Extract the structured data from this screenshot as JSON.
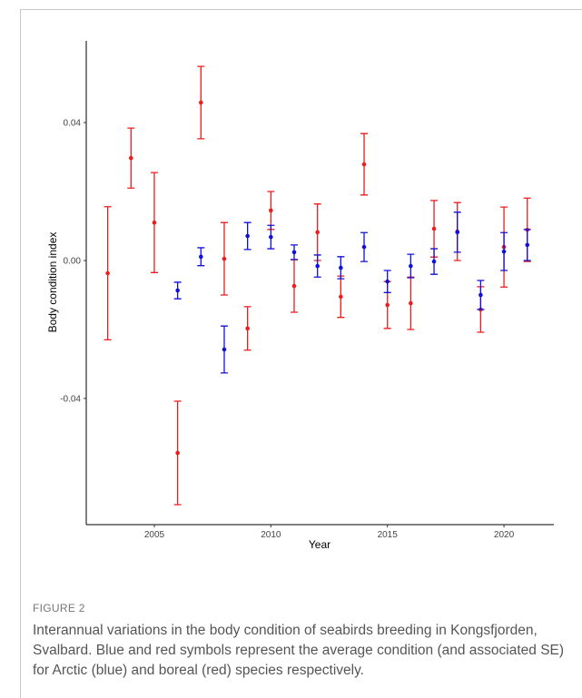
{
  "chart_data": {
    "type": "errorbar",
    "xlabel": "Year",
    "ylabel": "Body condition index",
    "x": [
      2003,
      2004,
      2005,
      2006,
      2007,
      2008,
      2009,
      2010,
      2011,
      2012,
      2013,
      2014,
      2015,
      2016,
      2017,
      2018,
      2019,
      2020,
      2021
    ],
    "series": [
      {
        "color": "#ee1c1c",
        "values": [
          -0.0037,
          0.0297,
          0.011,
          -0.0558,
          0.0458,
          0.0005,
          -0.0197,
          0.0145,
          -0.0074,
          0.0082,
          -0.0105,
          0.0279,
          -0.0129,
          -0.0124,
          0.0092,
          0.0084,
          -0.0142,
          0.0039,
          0.0089
        ],
        "errors": [
          0.0193,
          0.0087,
          0.0145,
          0.015,
          0.0105,
          0.0105,
          0.0063,
          0.0055,
          0.0076,
          0.0082,
          0.006,
          0.0089,
          0.0068,
          0.0076,
          0.0082,
          0.0084,
          0.0066,
          0.0116,
          0.0092
        ]
      },
      {
        "color": "#1010dd",
        "values": [
          null,
          null,
          null,
          -0.0087,
          0.0011,
          -0.0258,
          0.0071,
          0.0068,
          0.0024,
          -0.0016,
          -0.0021,
          0.0039,
          -0.0061,
          -0.0016,
          -0.0003,
          0.0082,
          -0.01,
          0.0026,
          0.0045
        ],
        "errors": [
          null,
          null,
          null,
          0.0024,
          0.0026,
          0.0068,
          0.0039,
          0.0034,
          0.0021,
          0.0032,
          0.0032,
          0.0042,
          0.0032,
          0.0034,
          0.0037,
          0.0058,
          0.0042,
          0.0055,
          0.0045
        ]
      }
    ],
    "xlim": [
      2002.08,
      2022.14
    ],
    "xticks": [
      2005,
      2010,
      2015,
      2020
    ],
    "ylim": [
      -0.0766,
      0.0637
    ],
    "yticks": [
      -0.04,
      {
        "value": 0,
        "label": "0.00"
      },
      0.04
    ],
    "grid": false
  },
  "figure": {
    "label": "FIGURE 2",
    "caption": "Interannual variations in the body condition of seabirds breeding in Kongsfjorden, Svalbard. Blue and red symbols represent the average condition (and associated SE) for Arctic (blue) and boreal (red) species respectively."
  }
}
